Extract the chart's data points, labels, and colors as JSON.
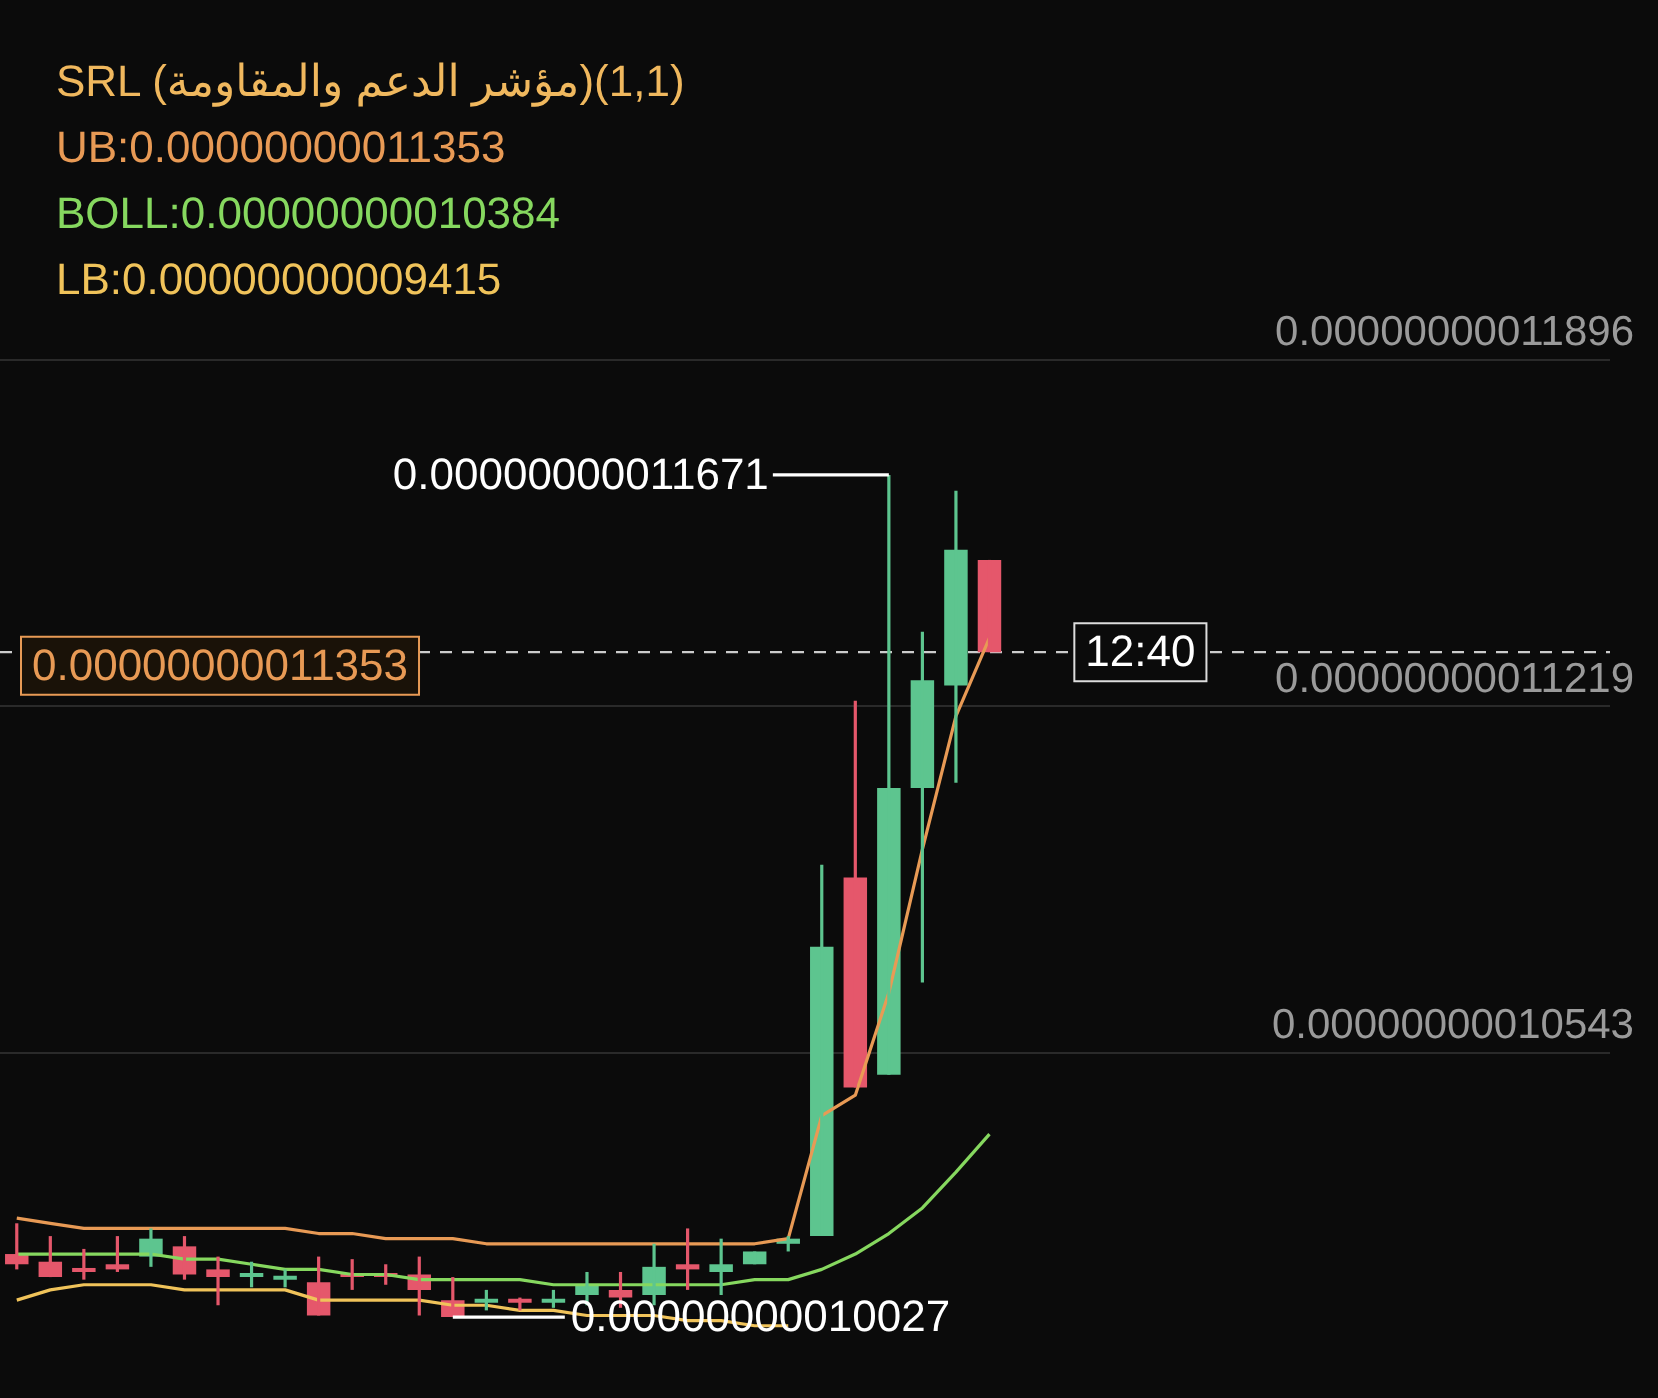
{
  "chart_data": {
    "type": "candlestick",
    "title": "SRL (مؤشر الدعم والمقاومة)(1,1)",
    "categories": [
      null,
      null,
      null,
      null,
      null,
      null,
      null,
      null,
      null,
      null,
      null,
      null,
      null,
      null,
      null,
      null,
      null,
      null,
      null,
      null,
      null,
      null,
      null,
      null,
      null,
      null,
      null,
      null,
      null,
      null
    ],
    "ohlc": [
      [
        1.015e-10,
        1.021e-10,
        1.012e-10,
        1.013e-10
      ],
      [
        1.0135e-10,
        1.0185e-10,
        1.0105e-10,
        1.0105e-10
      ],
      [
        1.012e-10,
        1.016e-10,
        1.01e-10,
        1.0115e-10
      ],
      [
        1.013e-10,
        1.0185e-10,
        1.0115e-10,
        1.012e-10
      ],
      [
        1.0145e-10,
        1.02e-10,
        1.0125e-10,
        1.018e-10
      ],
      [
        1.0165e-10,
        1.0185e-10,
        1.01e-10,
        1.011e-10
      ],
      [
        1.012e-10,
        1.0145e-10,
        1.005e-10,
        1.0105e-10
      ],
      [
        1.0105e-10,
        1.0135e-10,
        1.0085e-10,
        1.011e-10
      ],
      [
        1.01e-10,
        1.012e-10,
        1.0085e-10,
        1.0105e-10
      ],
      [
        1.0095e-10,
        1.0145e-10,
        1.003e-10,
        1.003e-10
      ],
      [
        1.011e-10,
        1.014e-10,
        1.008e-10,
        1.0105e-10
      ],
      [
        1.011e-10,
        1.013e-10,
        1.009e-10,
        1.0105e-10
      ],
      [
        1.011e-10,
        1.0145e-10,
        1.003e-10,
        1.008e-10
      ],
      [
        1.006e-10,
        1.0105e-10,
        1.0027e-10,
        1.0027e-10
      ],
      [
        1.0055e-10,
        1.008e-10,
        1.004e-10,
        1.006e-10
      ],
      [
        1.006e-10,
        1.0065e-10,
        1.004e-10,
        1.0055e-10
      ],
      [
        1.0055e-10,
        1.008e-10,
        1.0045e-10,
        1.006e-10
      ],
      [
        1.007e-10,
        1.0115e-10,
        1.005e-10,
        1.009e-10
      ],
      [
        1.008e-10,
        1.0115e-10,
        1.0045e-10,
        1.0065e-10
      ],
      [
        1.007e-10,
        1.017e-10,
        1.005e-10,
        1.0125e-10
      ],
      [
        1.013e-10,
        1.02e-10,
        1.008e-10,
        1.012e-10
      ],
      [
        1.0115e-10,
        1.018e-10,
        1.007e-10,
        1.013e-10
      ],
      [
        1.013e-10,
        1.0155e-10,
        1.013e-10,
        1.0155e-10
      ],
      [
        1.017e-10,
        1.0185e-10,
        1.0155e-10,
        1.018e-10
      ],
      [
        1.0185e-10,
        1.091e-10,
        1.0185e-10,
        1.075e-10
      ],
      [
        1.0885e-10,
        1.123e-10,
        1.0475e-10,
        1.0475e-10
      ],
      [
        1.05e-10,
        1.1671e-10,
        1.05e-10,
        1.106e-10
      ],
      [
        1.106e-10,
        1.1365e-10,
        1.068e-10,
        1.127e-10
      ],
      [
        1.126e-10,
        1.164e-10,
        1.107e-10,
        1.1525e-10
      ],
      [
        1.1505e-10,
        1.1505e-10,
        1.1325e-10,
        1.1325e-10
      ]
    ],
    "colors": [
      "#e5576b",
      "#e5576b",
      "#e5576b",
      "#e5576b",
      "#5dc58f",
      "#e5576b",
      "#e5576b",
      "#5dc58f",
      "#5dc58f",
      "#e5576b",
      "#e5576b",
      "#e5576b",
      "#e5576b",
      "#e5576b",
      "#5dc58f",
      "#e5576b",
      "#5dc58f",
      "#5dc58f",
      "#e5576b",
      "#5dc58f",
      "#e5576b",
      "#5dc58f",
      "#5dc58f",
      "#5dc58f",
      "#5dc58f",
      "#e5576b",
      "#5dc58f",
      "#5dc58f",
      "#5dc58f",
      "#e5576b"
    ],
    "series": [
      {
        "type": "line",
        "name": "UB:0.00000000011353",
        "color": "#e89a55",
        "values": [
          1.022e-10,
          1.021e-10,
          1.02e-10,
          1.02e-10,
          1.02e-10,
          1.02e-10,
          1.02e-10,
          1.02e-10,
          1.02e-10,
          1.019e-10,
          1.019e-10,
          1.018e-10,
          1.018e-10,
          1.018e-10,
          1.017e-10,
          1.017e-10,
          1.017e-10,
          1.017e-10,
          1.017e-10,
          1.017e-10,
          1.017e-10,
          1.017e-10,
          1.017e-10,
          1.018e-10,
          1.042e-10,
          1.046e-10,
          1.066e-10,
          1.094e-10,
          1.12e-10,
          1.1353e-10
        ]
      },
      {
        "type": "line",
        "name": "BOLL:0.00000000010384",
        "color": "#86d85f",
        "values": [
          1.015e-10,
          1.015e-10,
          1.015e-10,
          1.015e-10,
          1.015e-10,
          1.014e-10,
          1.014e-10,
          1.013e-10,
          1.012e-10,
          1.012e-10,
          1.011e-10,
          1.011e-10,
          1.01e-10,
          1.01e-10,
          1.01e-10,
          1.01e-10,
          1.009e-10,
          1.009e-10,
          1.009e-10,
          1.009e-10,
          1.009e-10,
          1.009e-10,
          1.01e-10,
          1.01e-10,
          1.012e-10,
          1.015e-10,
          1.019e-10,
          1.024e-10,
          1.031e-10,
          1.0384e-10
        ]
      },
      {
        "type": "line",
        "name": "LB:0.00000000009415",
        "color": "#f0c35a",
        "values": [
          1.006e-10,
          1.008e-10,
          1.009e-10,
          1.009e-10,
          1.009e-10,
          1.008e-10,
          1.008e-10,
          1.008e-10,
          1.008e-10,
          1.006e-10,
          1.006e-10,
          1.006e-10,
          1.006e-10,
          1.005e-10,
          1.005e-10,
          1.004e-10,
          1.004e-10,
          1.003e-10,
          1.003e-10,
          1.003e-10,
          1.002e-10,
          1.002e-10,
          1.001e-10,
          1.001e-10,
          null,
          null,
          null,
          null,
          null,
          null
        ]
      }
    ],
    "ylim": [
      9.965e-11,
      1.2502e-10
    ],
    "yticks": [
      {
        "value": 1.0543e-10,
        "label": "0.00000000010543"
      },
      {
        "value": 1.1219e-10,
        "label": "0.00000000011219"
      },
      {
        "value": 1.1896e-10,
        "label": "0.00000000011896"
      }
    ],
    "grid": "y",
    "legend": "top left",
    "marker": "none",
    "ref_lines": [
      {
        "axis": "y",
        "value": 1.1325e-10,
        "line_style": "dashed",
        "color": "#cccccc"
      }
    ],
    "annotations": [
      "0.00000000011671",
      "0.00000000010027",
      "0.00000000011353",
      "12:40"
    ]
  }
}
